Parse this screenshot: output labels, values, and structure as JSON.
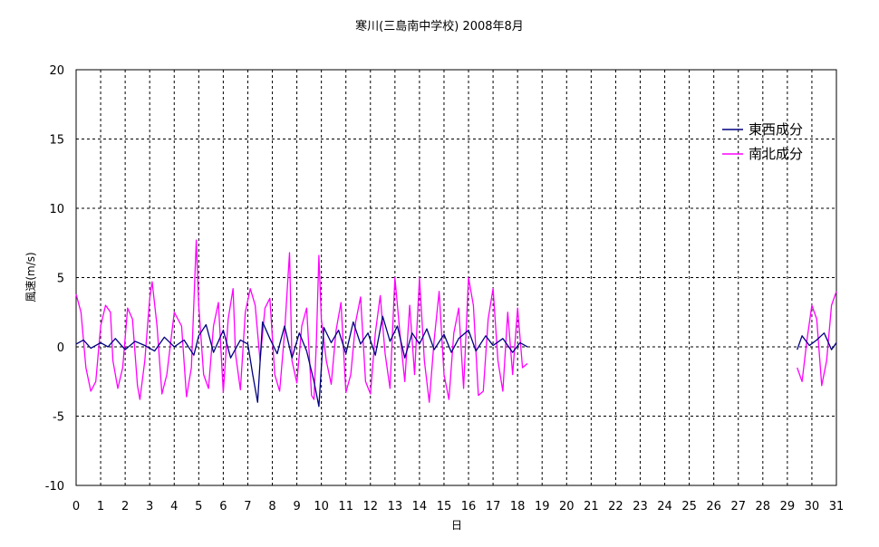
{
  "chart_data": {
    "type": "line",
    "title": "寒川(三島南中学校)  2008年8月",
    "xlabel": "日",
    "ylabel": "風速(m/s)",
    "xlim": [
      0,
      31
    ],
    "ylim": [
      -10,
      20
    ],
    "x_ticks": [
      "0",
      "1",
      "2",
      "3",
      "4",
      "5",
      "6",
      "7",
      "8",
      "9",
      "10",
      "11",
      "12",
      "13",
      "14",
      "15",
      "16",
      "17",
      "18",
      "19",
      "20",
      "21",
      "22",
      "23",
      "24",
      "25",
      "26",
      "27",
      "28",
      "29",
      "30",
      "31"
    ],
    "y_ticks": [
      "20",
      "15",
      "10",
      "5",
      "0",
      "-5",
      "-10"
    ],
    "grid": true,
    "legend_position": "top-right",
    "series": [
      {
        "name": "東西成分",
        "color": "#000080",
        "segments": [
          [
            [
              0.0,
              0.2
            ],
            [
              0.3,
              0.5
            ],
            [
              0.6,
              -0.1
            ],
            [
              1.0,
              0.3
            ],
            [
              1.3,
              0.0
            ],
            [
              1.6,
              0.6
            ],
            [
              2.0,
              -0.2
            ],
            [
              2.4,
              0.4
            ],
            [
              2.8,
              0.1
            ],
            [
              3.2,
              -0.3
            ],
            [
              3.6,
              0.7
            ],
            [
              4.0,
              0.0
            ],
            [
              4.4,
              0.5
            ],
            [
              4.8,
              -0.6
            ],
            [
              5.0,
              0.8
            ],
            [
              5.3,
              1.6
            ],
            [
              5.6,
              -0.4
            ],
            [
              6.0,
              1.2
            ],
            [
              6.3,
              -0.8
            ],
            [
              6.7,
              0.5
            ],
            [
              7.0,
              0.2
            ],
            [
              7.2,
              -2.0
            ],
            [
              7.4,
              -4.0
            ],
            [
              7.6,
              1.8
            ],
            [
              7.9,
              0.6
            ],
            [
              8.2,
              -0.5
            ],
            [
              8.5,
              1.5
            ],
            [
              8.8,
              -0.8
            ],
            [
              9.1,
              1.0
            ],
            [
              9.4,
              -0.3
            ],
            [
              9.7,
              -2.5
            ],
            [
              9.9,
              -4.3
            ],
            [
              10.1,
              1.4
            ],
            [
              10.4,
              0.3
            ],
            [
              10.7,
              1.2
            ],
            [
              11.0,
              -0.5
            ],
            [
              11.3,
              1.8
            ],
            [
              11.6,
              0.2
            ],
            [
              11.9,
              1.0
            ],
            [
              12.2,
              -0.6
            ],
            [
              12.5,
              2.2
            ],
            [
              12.8,
              0.4
            ],
            [
              13.1,
              1.5
            ],
            [
              13.4,
              -0.8
            ],
            [
              13.7,
              1.0
            ],
            [
              14.0,
              0.2
            ],
            [
              14.3,
              1.3
            ],
            [
              14.6,
              -0.2
            ],
            [
              15.0,
              0.9
            ],
            [
              15.3,
              -0.4
            ],
            [
              15.6,
              0.6
            ],
            [
              16.0,
              1.2
            ],
            [
              16.3,
              -0.3
            ],
            [
              16.7,
              0.8
            ],
            [
              17.0,
              0.1
            ],
            [
              17.4,
              0.6
            ],
            [
              17.8,
              -0.4
            ],
            [
              18.1,
              0.3
            ],
            [
              18.4,
              0.0
            ]
          ],
          [
            [
              29.4,
              -0.2
            ],
            [
              29.6,
              0.8
            ],
            [
              29.9,
              0.1
            ],
            [
              30.2,
              0.5
            ],
            [
              30.5,
              1.0
            ],
            [
              30.8,
              -0.2
            ],
            [
              31.0,
              0.3
            ]
          ]
        ]
      },
      {
        "name": "南北成分",
        "color": "#ff00ff",
        "segments": [
          [
            [
              0.0,
              3.8
            ],
            [
              0.2,
              2.5
            ],
            [
              0.4,
              -1.5
            ],
            [
              0.6,
              -3.2
            ],
            [
              0.8,
              -2.5
            ],
            [
              1.0,
              1.5
            ],
            [
              1.2,
              3.0
            ],
            [
              1.4,
              2.5
            ],
            [
              1.5,
              -1.0
            ],
            [
              1.7,
              -3.0
            ],
            [
              1.9,
              -1.5
            ],
            [
              2.1,
              2.8
            ],
            [
              2.3,
              2.0
            ],
            [
              2.5,
              -2.8
            ],
            [
              2.6,
              -3.8
            ],
            [
              2.8,
              -1.0
            ],
            [
              3.0,
              3.5
            ],
            [
              3.1,
              4.7
            ],
            [
              3.3,
              1.5
            ],
            [
              3.5,
              -3.4
            ],
            [
              3.7,
              -2.0
            ],
            [
              4.0,
              2.5
            ],
            [
              4.3,
              1.5
            ],
            [
              4.5,
              -3.6
            ],
            [
              4.7,
              -1.5
            ],
            [
              4.9,
              7.7
            ],
            [
              5.0,
              3.0
            ],
            [
              5.2,
              -2.0
            ],
            [
              5.4,
              -3.0
            ],
            [
              5.6,
              1.5
            ],
            [
              5.8,
              3.2
            ],
            [
              6.0,
              -3.3
            ],
            [
              6.2,
              2.0
            ],
            [
              6.4,
              4.2
            ],
            [
              6.5,
              -0.5
            ],
            [
              6.7,
              -3.1
            ],
            [
              6.9,
              2.5
            ],
            [
              7.1,
              4.2
            ],
            [
              7.3,
              3.0
            ],
            [
              7.5,
              -1.0
            ],
            [
              7.7,
              2.8
            ],
            [
              7.9,
              3.5
            ],
            [
              8.1,
              -2.0
            ],
            [
              8.3,
              -3.2
            ],
            [
              8.5,
              1.0
            ],
            [
              8.7,
              6.8
            ],
            [
              8.8,
              -1.0
            ],
            [
              9.0,
              -2.6
            ],
            [
              9.2,
              1.5
            ],
            [
              9.4,
              2.8
            ],
            [
              9.6,
              -3.5
            ],
            [
              9.7,
              -3.8
            ],
            [
              9.8,
              0.5
            ],
            [
              9.9,
              6.6
            ],
            [
              10.0,
              2.0
            ],
            [
              10.2,
              -1.0
            ],
            [
              10.4,
              -2.7
            ],
            [
              10.6,
              1.2
            ],
            [
              10.8,
              3.2
            ],
            [
              11.0,
              -3.3
            ],
            [
              11.2,
              -2.0
            ],
            [
              11.4,
              1.8
            ],
            [
              11.6,
              3.6
            ],
            [
              11.8,
              -2.5
            ],
            [
              12.0,
              -3.4
            ],
            [
              12.2,
              1.0
            ],
            [
              12.4,
              3.7
            ],
            [
              12.6,
              -0.5
            ],
            [
              12.8,
              -3.0
            ],
            [
              13.0,
              5.0
            ],
            [
              13.2,
              1.0
            ],
            [
              13.4,
              -2.5
            ],
            [
              13.6,
              3.0
            ],
            [
              13.8,
              -2.0
            ],
            [
              14.0,
              5.0
            ],
            [
              14.2,
              -1.0
            ],
            [
              14.4,
              -4.0
            ],
            [
              14.6,
              0.5
            ],
            [
              14.8,
              4.0
            ],
            [
              15.0,
              -2.0
            ],
            [
              15.2,
              -3.8
            ],
            [
              15.4,
              1.0
            ],
            [
              15.6,
              2.8
            ],
            [
              15.8,
              -3.0
            ],
            [
              16.0,
              5.0
            ],
            [
              16.2,
              3.0
            ],
            [
              16.4,
              -3.5
            ],
            [
              16.6,
              -3.2
            ],
            [
              16.8,
              2.0
            ],
            [
              17.0,
              4.2
            ],
            [
              17.2,
              -1.0
            ],
            [
              17.4,
              -3.2
            ],
            [
              17.6,
              2.5
            ],
            [
              17.8,
              -2.0
            ],
            [
              18.0,
              2.8
            ],
            [
              18.2,
              -1.5
            ],
            [
              18.4,
              -1.2
            ]
          ],
          [
            [
              29.4,
              -1.5
            ],
            [
              29.6,
              -2.5
            ],
            [
              29.8,
              0.5
            ],
            [
              30.0,
              3.0
            ],
            [
              30.2,
              2.0
            ],
            [
              30.4,
              -2.8
            ],
            [
              30.6,
              -1.0
            ],
            [
              30.8,
              3.0
            ],
            [
              31.0,
              4.0
            ]
          ]
        ]
      }
    ]
  }
}
